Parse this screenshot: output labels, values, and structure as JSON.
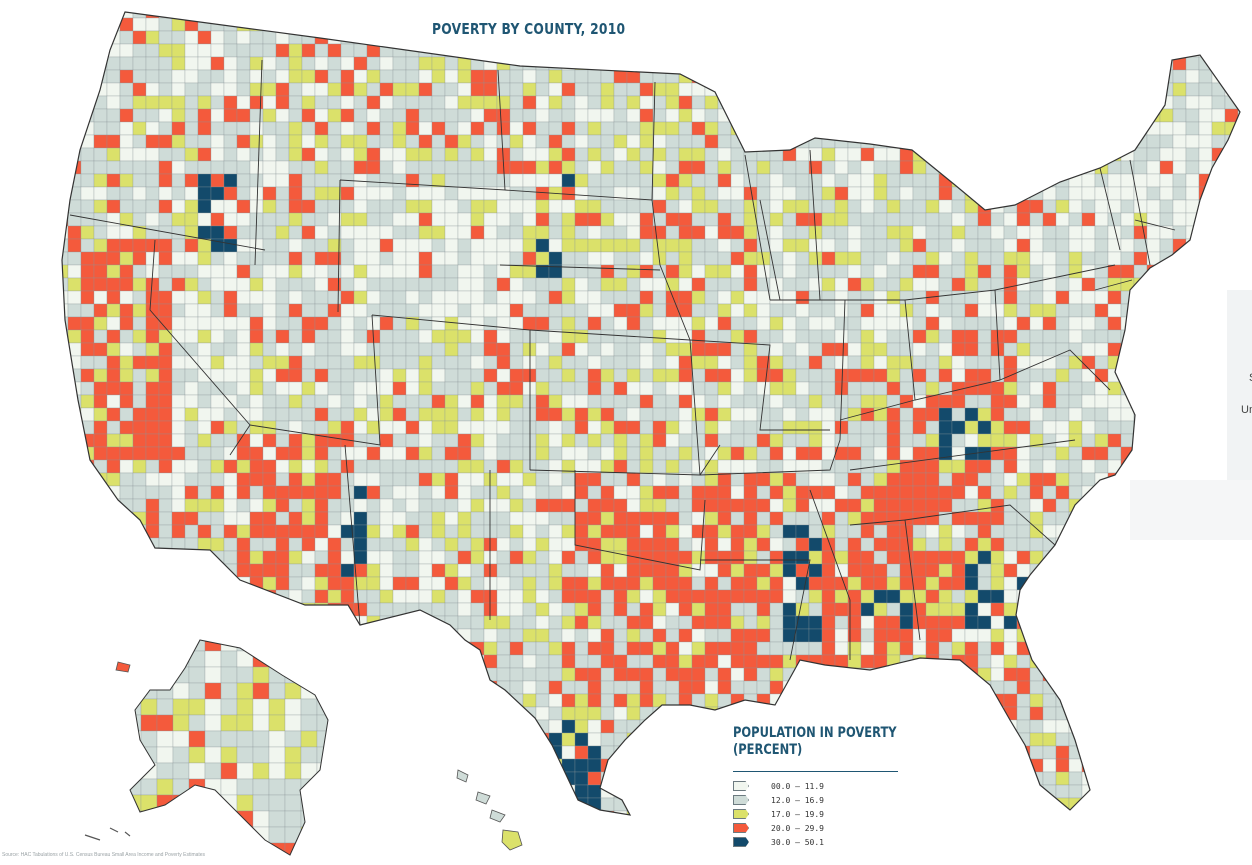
{
  "title": "POVERTY BY COUNTY, 2010",
  "legend": {
    "title_line1": "POPULATION IN POVERTY",
    "title_line2": "(PERCENT)",
    "items": [
      {
        "label": "00.0 – 11.9",
        "color": "#f1f6ef"
      },
      {
        "label": "12.0 – 16.9",
        "color": "#cfdcd8"
      },
      {
        "label": "17.0 – 19.9",
        "color": "#dbe16a"
      },
      {
        "label": "20.0 – 29.9",
        "color": "#f45a3c"
      },
      {
        "label": "30.0 – 50.1",
        "color": "#134a6b"
      }
    ]
  },
  "source": "Source: HAC Tabulations of U.S. Census Bureau Small Area Income and Poverty Estimates",
  "side_panel": {
    "text1": "S",
    "text2": "Un"
  },
  "colors": {
    "low": "#f1f6ef",
    "mid": "#cfdcd8",
    "elevated": "#dbe16a",
    "high": "#f45a3c",
    "severe": "#134a6b",
    "border": "#333333",
    "title": "#1f5673"
  }
}
